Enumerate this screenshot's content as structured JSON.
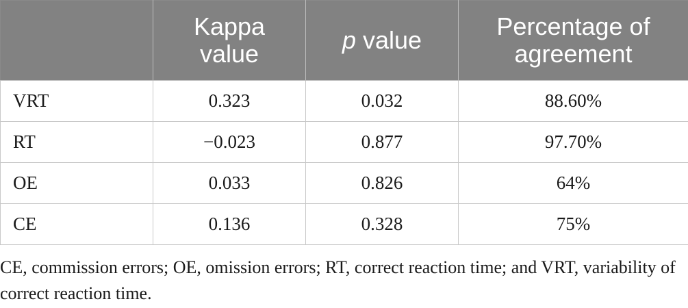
{
  "table": {
    "headers": [
      {
        "text": "",
        "italic_part": "",
        "rest": ""
      },
      {
        "text": "Kappa value"
      },
      {
        "italic_part": "p",
        "rest": " value"
      },
      {
        "text": "Percentage of agreement"
      }
    ],
    "header_lines": {
      "kappa_line1": "Kappa",
      "kappa_line2": "value",
      "p_italic": "p",
      "p_rest": " value",
      "pct_line1": "Percentage of",
      "pct_line2": "agreement"
    },
    "rows": [
      {
        "label": "VRT",
        "kappa": "0.323",
        "p": "0.032",
        "agreement": "88.60%"
      },
      {
        "label": "RT",
        "kappa": "−0.023",
        "p": "0.877",
        "agreement": "97.70%"
      },
      {
        "label": "OE",
        "kappa": "0.033",
        "p": "0.826",
        "agreement": "64%"
      },
      {
        "label": "CE",
        "kappa": "0.136",
        "p": "0.328",
        "agreement": "75%"
      }
    ]
  },
  "footnote": "CE, commission errors; OE, omission errors; RT, correct reaction time; and VRT, variability of correct reaction time.",
  "colors": {
    "header_bg": "#828282",
    "header_text": "#ffffff",
    "border": "#c8c8c8"
  }
}
